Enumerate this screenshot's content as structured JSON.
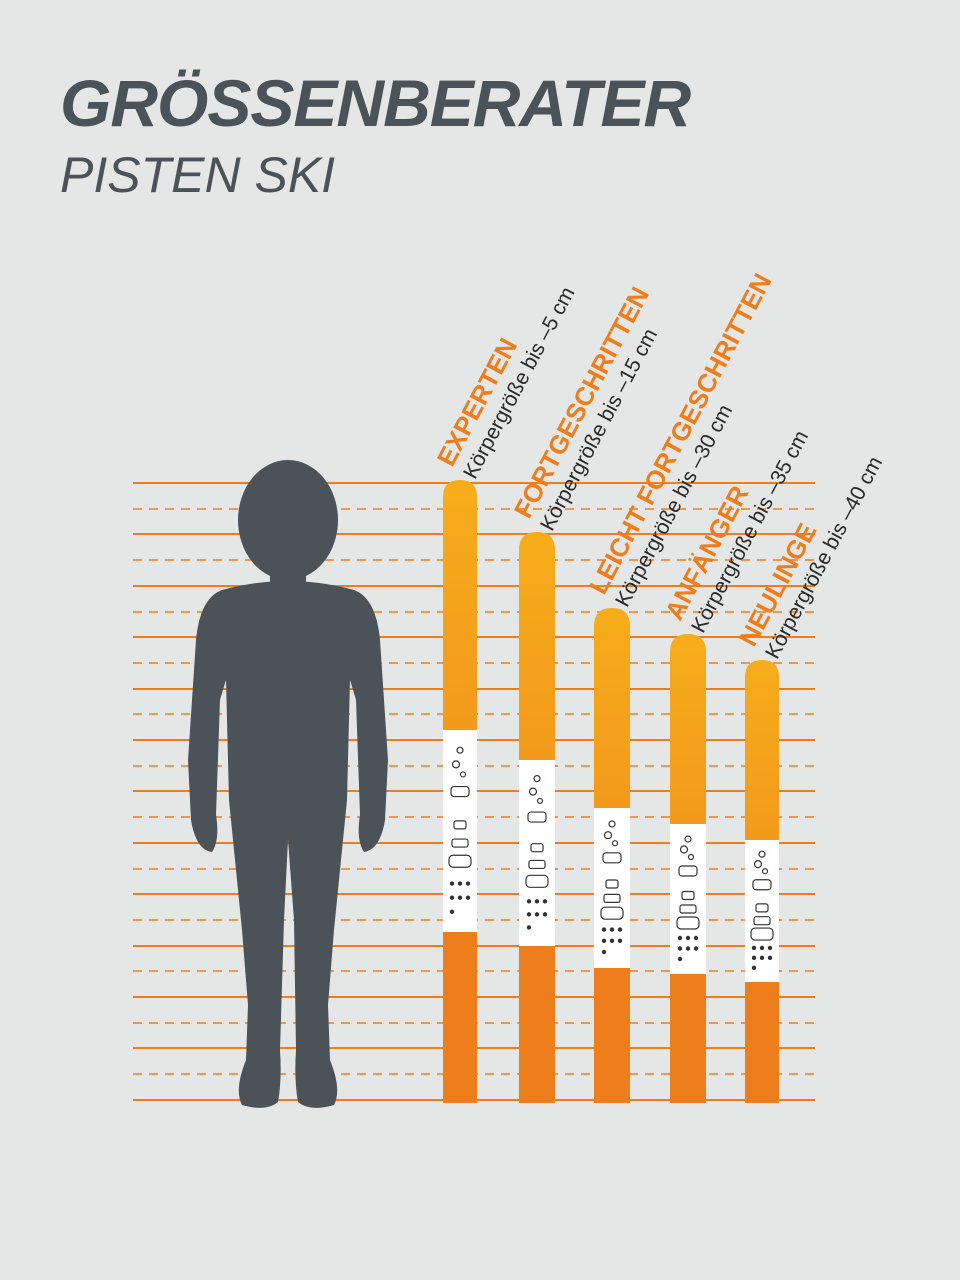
{
  "header": {
    "title": "GRÖSSENBERATER",
    "subtitle": "PISTEN SKI"
  },
  "colors": {
    "background": "#e4e7e6",
    "accent_orange": "#ee7d1c",
    "ski_top": "#f6ad1b",
    "figure": "#4b5258"
  },
  "skis": [
    {
      "level": "EXPERTEN",
      "size_text": "Körpergröße bis –5 cm",
      "offset_cm": -5
    },
    {
      "level": "FORTGESCHRITTEN",
      "size_text": "Körpergröße bis –15 cm",
      "offset_cm": -15
    },
    {
      "level": "LEICHT FORTGESCHRITTEN",
      "size_text": "Körpergröße bis –30 cm",
      "offset_cm": -30
    },
    {
      "level": "ANFÄNGER",
      "size_text": "Körpergröße bis –35 cm",
      "offset_cm": -35
    },
    {
      "level": "NEULINGE",
      "size_text": "Körpergröße bis –40 cm",
      "offset_cm": -40
    }
  ]
}
